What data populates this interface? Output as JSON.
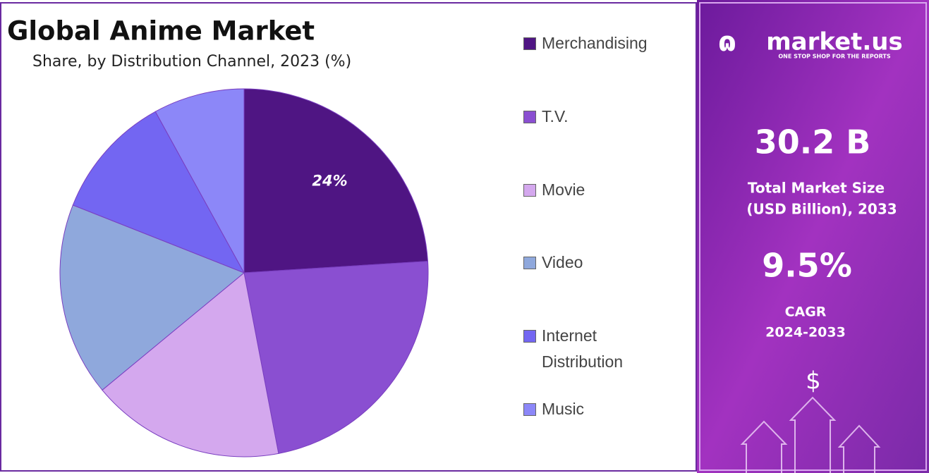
{
  "chart_data": {
    "type": "pie",
    "title": "Global Anime Market",
    "subtitle": "Share, by Distribution Channel, 2023 (%)",
    "categories": [
      "Merchandising",
      "T.V.",
      "Movie",
      "Video",
      "Internet Distribution",
      "Music"
    ],
    "values": [
      24,
      23,
      17,
      17,
      11,
      8
    ],
    "value_labels": [
      "24%",
      null,
      null,
      null,
      null,
      null
    ],
    "colors": [
      "#4f1583",
      "#8a4fd1",
      "#d4a8ee",
      "#8fa8dc",
      "#7366f2",
      "#8c87f8"
    ]
  },
  "panel": {
    "brand": "market.us",
    "tagline": "ONE STOP SHOP FOR THE REPORTS",
    "market_size": "30.2 B",
    "market_size_label": "Total Market Size",
    "market_size_unit": "(USD Billion), 2033",
    "cagr": "9.5%",
    "cagr_label": "CAGR",
    "cagr_period": "2024-2033",
    "icon": "$"
  }
}
